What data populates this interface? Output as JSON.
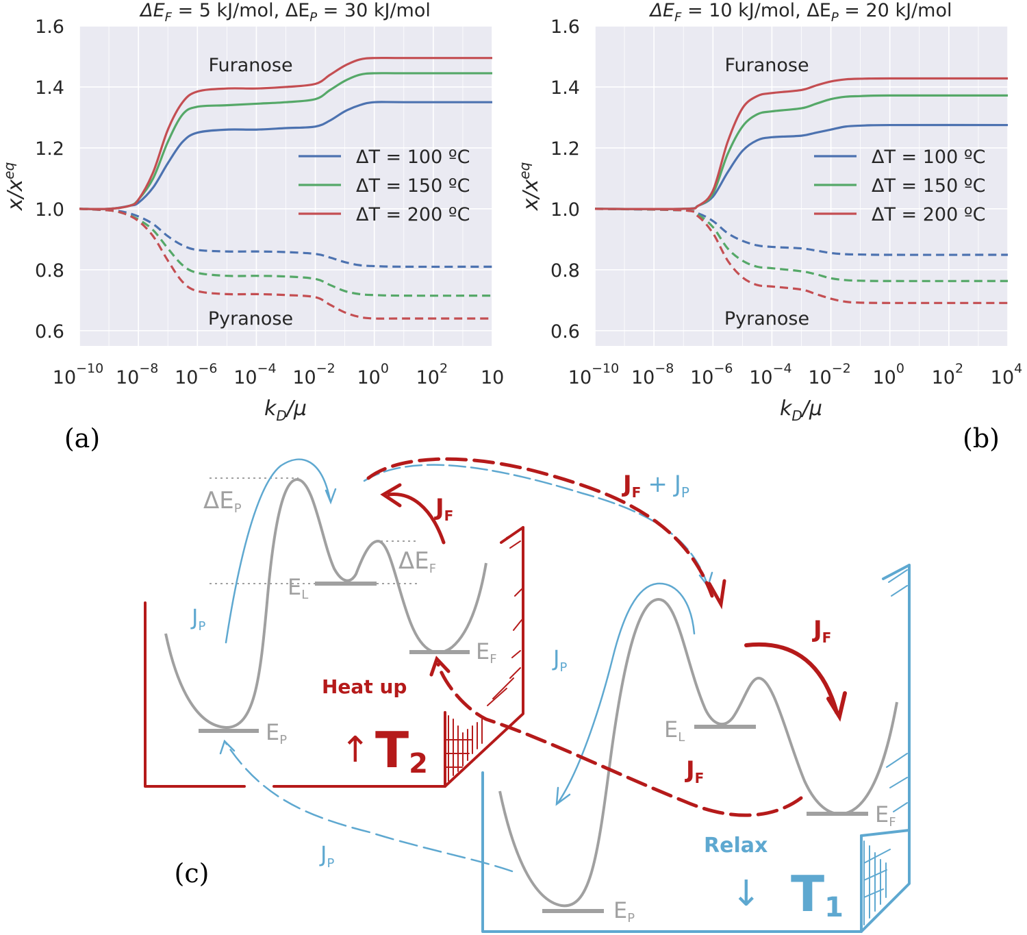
{
  "colors": {
    "blue": "#4c72b0",
    "green": "#55a868",
    "red": "#c44e52",
    "axes_bg": "#eaeaf2",
    "grid": "#ffffff",
    "sketch_red": "#b51a1a",
    "sketch_blue": "#5ea8d0",
    "sketch_grey": "#a0a0a0"
  },
  "chart_data": [
    {
      "type": "line",
      "panel_label": "(a)",
      "title": {
        "pre": "ΔE",
        "sub1": "F",
        "mid": " = 5 kJ/mol, ΔE",
        "sub2": "P",
        "post": " = 30 kJ/mol"
      },
      "xlabel": {
        "k": "k",
        "sub": "D",
        "rest": "/μ"
      },
      "ylabel": {
        "x": "x/x",
        "sup": "eq"
      },
      "x_scale": "log",
      "xlim": [
        1e-10,
        10000.0
      ],
      "ylim": [
        0.55,
        1.6
      ],
      "yticks": [
        "0.6",
        "0.8",
        "1.0",
        "1.2",
        "1.4",
        "1.6"
      ],
      "xtick_exponents": [
        "−10",
        "−8",
        "−6",
        "−4",
        "−2",
        "0",
        "2"
      ],
      "xtick_last_text": "10",
      "grid": true,
      "legend_location": "center-right",
      "annotations": [
        "Furanose",
        "Pyranose"
      ],
      "series": [
        {
          "name": "ΔT = 100 ºC",
          "color": "blue",
          "style": "solid",
          "group": "Furanose",
          "points": [
            [
              -10,
              1.0
            ],
            [
              -9,
              1.0
            ],
            [
              -8.3,
              1.01
            ],
            [
              -8,
              1.02
            ],
            [
              -7.5,
              1.07
            ],
            [
              -7,
              1.15
            ],
            [
              -6.5,
              1.22
            ],
            [
              -6,
              1.25
            ],
            [
              -5,
              1.26
            ],
            [
              -4,
              1.26
            ],
            [
              -3,
              1.265
            ],
            [
              -2,
              1.27
            ],
            [
              -1.5,
              1.29
            ],
            [
              -1,
              1.32
            ],
            [
              -0.5,
              1.34
            ],
            [
              0,
              1.35
            ],
            [
              1,
              1.35
            ],
            [
              4,
              1.35
            ]
          ]
        },
        {
          "name": "ΔT = 150 ºC",
          "color": "green",
          "style": "solid",
          "group": "Furanose",
          "points": [
            [
              -10,
              1.0
            ],
            [
              -9,
              1.0
            ],
            [
              -8.3,
              1.01
            ],
            [
              -8,
              1.03
            ],
            [
              -7.5,
              1.1
            ],
            [
              -7,
              1.22
            ],
            [
              -6.5,
              1.31
            ],
            [
              -6,
              1.335
            ],
            [
              -5,
              1.34
            ],
            [
              -4,
              1.345
            ],
            [
              -3,
              1.35
            ],
            [
              -2,
              1.36
            ],
            [
              -1.5,
              1.39
            ],
            [
              -1,
              1.42
            ],
            [
              -0.5,
              1.44
            ],
            [
              0,
              1.445
            ],
            [
              1,
              1.445
            ],
            [
              4,
              1.445
            ]
          ]
        },
        {
          "name": "ΔT = 200 ºC",
          "color": "red",
          "style": "solid",
          "group": "Furanose",
          "points": [
            [
              -10,
              1.0
            ],
            [
              -9,
              1.0
            ],
            [
              -8.3,
              1.01
            ],
            [
              -8,
              1.03
            ],
            [
              -7.5,
              1.12
            ],
            [
              -7,
              1.26
            ],
            [
              -6.5,
              1.35
            ],
            [
              -6,
              1.385
            ],
            [
              -5,
              1.395
            ],
            [
              -4,
              1.395
            ],
            [
              -3,
              1.4
            ],
            [
              -2,
              1.41
            ],
            [
              -1.5,
              1.44
            ],
            [
              -1,
              1.47
            ],
            [
              -0.5,
              1.49
            ],
            [
              0,
              1.495
            ],
            [
              1,
              1.495
            ],
            [
              4,
              1.495
            ]
          ]
        },
        {
          "name": "",
          "color": "blue",
          "style": "dashed",
          "group": "Pyranose",
          "points": [
            [
              -10,
              1.0
            ],
            [
              -9,
              0.995
            ],
            [
              -8.5,
              0.99
            ],
            [
              -8,
              0.975
            ],
            [
              -7.5,
              0.95
            ],
            [
              -7,
              0.91
            ],
            [
              -6.5,
              0.88
            ],
            [
              -6,
              0.865
            ],
            [
              -5,
              0.86
            ],
            [
              -4,
              0.86
            ],
            [
              -3,
              0.858
            ],
            [
              -2,
              0.852
            ],
            [
              -1.5,
              0.84
            ],
            [
              -1,
              0.825
            ],
            [
              -0.5,
              0.815
            ],
            [
              0,
              0.812
            ],
            [
              1,
              0.81
            ],
            [
              4,
              0.81
            ]
          ]
        },
        {
          "name": "",
          "color": "green",
          "style": "dashed",
          "group": "Pyranose",
          "points": [
            [
              -10,
              1.0
            ],
            [
              -9,
              0.995
            ],
            [
              -8.5,
              0.985
            ],
            [
              -8,
              0.965
            ],
            [
              -7.5,
              0.93
            ],
            [
              -7,
              0.87
            ],
            [
              -6.5,
              0.815
            ],
            [
              -6,
              0.79
            ],
            [
              -5,
              0.78
            ],
            [
              -4,
              0.78
            ],
            [
              -3,
              0.778
            ],
            [
              -2,
              0.77
            ],
            [
              -1.5,
              0.75
            ],
            [
              -1,
              0.73
            ],
            [
              -0.5,
              0.72
            ],
            [
              0,
              0.717
            ],
            [
              1,
              0.715
            ],
            [
              4,
              0.715
            ]
          ]
        },
        {
          "name": "",
          "color": "red",
          "style": "dashed",
          "group": "Pyranose",
          "points": [
            [
              -10,
              1.0
            ],
            [
              -9,
              0.995
            ],
            [
              -8.5,
              0.985
            ],
            [
              -8,
              0.96
            ],
            [
              -7.5,
              0.91
            ],
            [
              -7,
              0.83
            ],
            [
              -6.5,
              0.76
            ],
            [
              -6,
              0.73
            ],
            [
              -5,
              0.72
            ],
            [
              -4,
              0.72
            ],
            [
              -3,
              0.717
            ],
            [
              -2,
              0.71
            ],
            [
              -1.5,
              0.685
            ],
            [
              -1,
              0.66
            ],
            [
              -0.5,
              0.645
            ],
            [
              0,
              0.64
            ],
            [
              1,
              0.64
            ],
            [
              4,
              0.64
            ]
          ]
        }
      ]
    },
    {
      "type": "line",
      "panel_label": "(b)",
      "title": {
        "pre": "ΔE",
        "sub1": "F",
        "mid": " = 10 kJ/mol, ΔE",
        "sub2": "P",
        "post": " = 20 kJ/mol"
      },
      "xlabel": {
        "k": "k",
        "sub": "D",
        "rest": "/μ"
      },
      "ylabel": {
        "x": "x/x",
        "sup": "eq"
      },
      "x_scale": "log",
      "xlim": [
        1e-10,
        10000.0
      ],
      "ylim": [
        0.55,
        1.6
      ],
      "yticks": [
        "0.6",
        "0.8",
        "1.0",
        "1.2",
        "1.4",
        "1.6"
      ],
      "xtick_exponents": [
        "−10",
        "−8",
        "−6",
        "−4",
        "−2",
        "0",
        "2",
        "4"
      ],
      "grid": true,
      "legend_location": "center-right",
      "annotations": [
        "Furanose",
        "Pyranose"
      ],
      "series": [
        {
          "name": "ΔT = 100 ºC",
          "color": "blue",
          "style": "solid",
          "group": "Furanose",
          "points": [
            [
              -10,
              1.0
            ],
            [
              -7,
              1.0
            ],
            [
              -6.5,
              1.01
            ],
            [
              -6,
              1.04
            ],
            [
              -5.5,
              1.12
            ],
            [
              -5,
              1.19
            ],
            [
              -4.5,
              1.225
            ],
            [
              -4,
              1.235
            ],
            [
              -3,
              1.24
            ],
            [
              -2.5,
              1.25
            ],
            [
              -2,
              1.26
            ],
            [
              -1.5,
              1.27
            ],
            [
              -1,
              1.273
            ],
            [
              0,
              1.275
            ],
            [
              4,
              1.275
            ]
          ]
        },
        {
          "name": "ΔT = 150 ºC",
          "color": "green",
          "style": "solid",
          "group": "Furanose",
          "points": [
            [
              -10,
              1.0
            ],
            [
              -7,
              1.0
            ],
            [
              -6.5,
              1.01
            ],
            [
              -6,
              1.05
            ],
            [
              -5.5,
              1.18
            ],
            [
              -5,
              1.27
            ],
            [
              -4.5,
              1.31
            ],
            [
              -4,
              1.32
            ],
            [
              -3,
              1.33
            ],
            [
              -2.5,
              1.345
            ],
            [
              -2,
              1.36
            ],
            [
              -1.5,
              1.368
            ],
            [
              -1,
              1.37
            ],
            [
              0,
              1.372
            ],
            [
              4,
              1.372
            ]
          ]
        },
        {
          "name": "ΔT = 200 ºC",
          "color": "red",
          "style": "solid",
          "group": "Furanose",
          "points": [
            [
              -10,
              1.0
            ],
            [
              -7,
              1.0
            ],
            [
              -6.5,
              1.01
            ],
            [
              -6,
              1.06
            ],
            [
              -5.5,
              1.22
            ],
            [
              -5,
              1.33
            ],
            [
              -4.5,
              1.37
            ],
            [
              -4,
              1.38
            ],
            [
              -3,
              1.39
            ],
            [
              -2.5,
              1.405
            ],
            [
              -2,
              1.418
            ],
            [
              -1.5,
              1.425
            ],
            [
              -1,
              1.427
            ],
            [
              0,
              1.428
            ],
            [
              4,
              1.428
            ]
          ]
        },
        {
          "name": "",
          "color": "blue",
          "style": "dashed",
          "group": "Pyranose",
          "points": [
            [
              -10,
              1.0
            ],
            [
              -7,
              0.995
            ],
            [
              -6.5,
              0.985
            ],
            [
              -6,
              0.96
            ],
            [
              -5.5,
              0.92
            ],
            [
              -5,
              0.895
            ],
            [
              -4.5,
              0.88
            ],
            [
              -4,
              0.875
            ],
            [
              -3,
              0.87
            ],
            [
              -2.5,
              0.863
            ],
            [
              -2,
              0.855
            ],
            [
              -1.5,
              0.851
            ],
            [
              -1,
              0.85
            ],
            [
              0,
              0.849
            ],
            [
              4,
              0.849
            ]
          ]
        },
        {
          "name": "",
          "color": "green",
          "style": "dashed",
          "group": "Pyranose",
          "points": [
            [
              -10,
              1.0
            ],
            [
              -7,
              0.995
            ],
            [
              -6.5,
              0.98
            ],
            [
              -6,
              0.94
            ],
            [
              -5.5,
              0.87
            ],
            [
              -5,
              0.83
            ],
            [
              -4.5,
              0.81
            ],
            [
              -4,
              0.805
            ],
            [
              -3,
              0.795
            ],
            [
              -2.5,
              0.785
            ],
            [
              -2,
              0.772
            ],
            [
              -1.5,
              0.766
            ],
            [
              -1,
              0.764
            ],
            [
              0,
              0.763
            ],
            [
              4,
              0.763
            ]
          ]
        },
        {
          "name": "",
          "color": "red",
          "style": "dashed",
          "group": "Pyranose",
          "points": [
            [
              -10,
              1.0
            ],
            [
              -7,
              0.995
            ],
            [
              -6.5,
              0.975
            ],
            [
              -6,
              0.92
            ],
            [
              -5.5,
              0.83
            ],
            [
              -5,
              0.775
            ],
            [
              -4.5,
              0.75
            ],
            [
              -4,
              0.745
            ],
            [
              -3,
              0.735
            ],
            [
              -2.5,
              0.72
            ],
            [
              -2,
              0.705
            ],
            [
              -1.5,
              0.695
            ],
            [
              -1,
              0.692
            ],
            [
              0,
              0.691
            ],
            [
              4,
              0.691
            ]
          ]
        }
      ]
    }
  ],
  "diagram": {
    "panel_label": "(c)",
    "hot_box": {
      "temperature": "T",
      "temperature_sub": "2",
      "action": "Heat up",
      "arrow": "↑",
      "levels": [
        {
          "main": "E",
          "sub": "P"
        },
        {
          "main": "E",
          "sub": "L"
        },
        {
          "main": "E",
          "sub": "F"
        }
      ],
      "barrier_labels": [
        {
          "main": "ΔE",
          "sub": "P"
        },
        {
          "main": "ΔE",
          "sub": "F"
        }
      ],
      "fluxes": [
        {
          "main": "J",
          "sub": "F"
        },
        {
          "main": "J",
          "sub": "P"
        }
      ]
    },
    "cold_box": {
      "temperature": "T",
      "temperature_sub": "1",
      "action": "Relax",
      "arrow": "↓",
      "levels": [
        {
          "main": "E",
          "sub": "P"
        },
        {
          "main": "E",
          "sub": "L"
        },
        {
          "main": "E",
          "sub": "F"
        }
      ],
      "fluxes": [
        {
          "main": "J",
          "sub": "F"
        },
        {
          "main": "J",
          "sub": "P"
        }
      ]
    },
    "transfer_fluxes": {
      "combined": {
        "a": "J",
        "a_sub": "F",
        "plus": "+",
        "b": "J",
        "b_sub": "P"
      },
      "return_F": {
        "main": "J",
        "sub": "F"
      },
      "return_P": {
        "main": "J",
        "sub": "P"
      }
    }
  }
}
